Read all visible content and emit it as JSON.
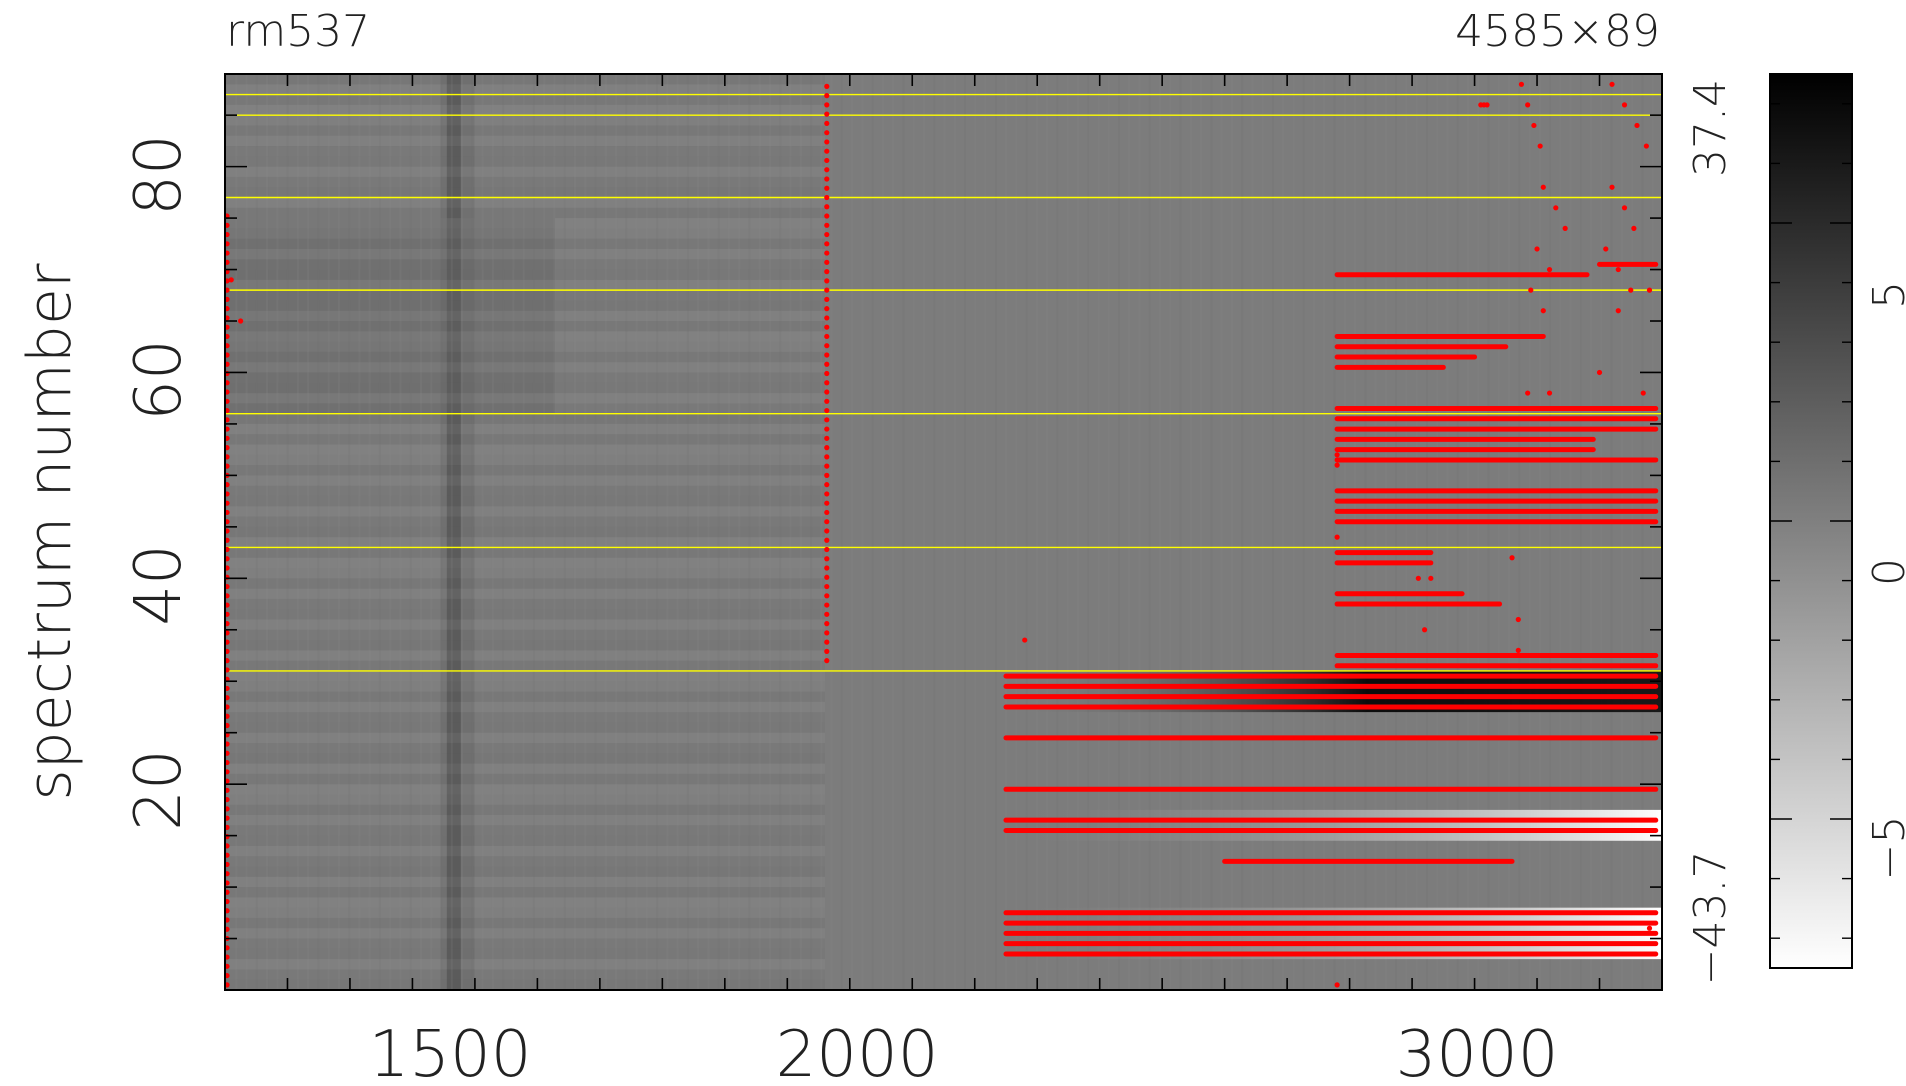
{
  "chart_data": {
    "type": "heatmap",
    "title_left": "rm537",
    "title_right": "4585×89",
    "ylabel": "spectrum number",
    "xlabel": "",
    "xlim": [
      1200,
      3500
    ],
    "ylim": [
      0,
      89
    ],
    "x_ticks": [
      "1500",
      "2000",
      "3000"
    ],
    "y_ticks": [
      "20",
      "40",
      "60",
      "80"
    ],
    "colorbar": {
      "ticks": [
        "5",
        "0",
        "−5"
      ],
      "range": [
        -7.5,
        7.5
      ],
      "low_color": "#ffffff",
      "high_color": "#000000"
    },
    "image_range_labels": [
      "37.4",
      "−43.7"
    ],
    "guide_lines_y": [
      87,
      85,
      77,
      68,
      56,
      43,
      31
    ],
    "guide_line_color": "#ffff00",
    "mask_color": "#ff0000",
    "long_masked_rows": [
      {
        "y": 3.5,
        "x1": 2450,
        "x2": 3490
      },
      {
        "y": 4.5,
        "x1": 2450,
        "x2": 3490
      },
      {
        "y": 5.5,
        "x1": 2450,
        "x2": 3490
      },
      {
        "y": 6.5,
        "x1": 2450,
        "x2": 3490
      },
      {
        "y": 7.5,
        "x1": 2450,
        "x2": 3490
      },
      {
        "y": 12.5,
        "x1": 2800,
        "x2": 3260
      },
      {
        "y": 15.5,
        "x1": 2450,
        "x2": 3490
      },
      {
        "y": 16.5,
        "x1": 2450,
        "x2": 3490
      },
      {
        "y": 19.5,
        "x1": 2450,
        "x2": 3490
      },
      {
        "y": 24.5,
        "x1": 2450,
        "x2": 3490
      },
      {
        "y": 27.5,
        "x1": 2450,
        "x2": 3490
      },
      {
        "y": 28.5,
        "x1": 2450,
        "x2": 3490
      },
      {
        "y": 29.5,
        "x1": 2450,
        "x2": 3490
      },
      {
        "y": 30.5,
        "x1": 2450,
        "x2": 3490
      },
      {
        "y": 31.5,
        "x1": 2980,
        "x2": 3490
      },
      {
        "y": 32.5,
        "x1": 2980,
        "x2": 3490
      },
      {
        "y": 37.5,
        "x1": 2980,
        "x2": 3240
      },
      {
        "y": 38.5,
        "x1": 2980,
        "x2": 3180
      },
      {
        "y": 41.5,
        "x1": 2980,
        "x2": 3130
      },
      {
        "y": 42.5,
        "x1": 2980,
        "x2": 3130
      },
      {
        "y": 45.5,
        "x1": 2980,
        "x2": 3490
      },
      {
        "y": 46.5,
        "x1": 2980,
        "x2": 3490
      },
      {
        "y": 47.5,
        "x1": 2980,
        "x2": 3490
      },
      {
        "y": 48.5,
        "x1": 2980,
        "x2": 3490
      },
      {
        "y": 51.5,
        "x1": 2980,
        "x2": 3490
      },
      {
        "y": 52.5,
        "x1": 2980,
        "x2": 3390
      },
      {
        "y": 53.5,
        "x1": 2980,
        "x2": 3390
      },
      {
        "y": 54.5,
        "x1": 2980,
        "x2": 3490
      },
      {
        "y": 55.5,
        "x1": 2980,
        "x2": 3490
      },
      {
        "y": 56.5,
        "x1": 2980,
        "x2": 3490
      },
      {
        "y": 60.5,
        "x1": 2980,
        "x2": 3150
      },
      {
        "y": 61.5,
        "x1": 2980,
        "x2": 3200
      },
      {
        "y": 62.5,
        "x1": 2980,
        "x2": 3250
      },
      {
        "y": 63.5,
        "x1": 2980,
        "x2": 3310
      },
      {
        "y": 69.5,
        "x1": 2980,
        "x2": 3380
      },
      {
        "y": 70.5,
        "x1": 3400,
        "x2": 3490
      }
    ],
    "masked_columns": [
      {
        "x": 1200,
        "y1": 0.5,
        "y2": 76
      },
      {
        "x": 2160,
        "y1": 32,
        "y2": 88.5
      }
    ]
  }
}
